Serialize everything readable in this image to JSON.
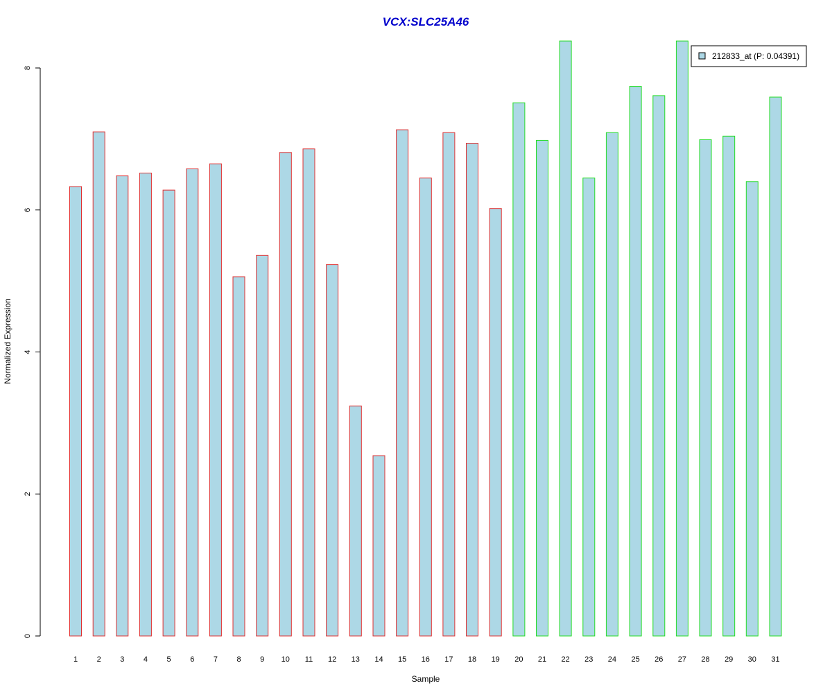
{
  "chart_data": {
    "type": "bar",
    "title": "VCX:SLC25A46",
    "xlabel": "Sample",
    "ylabel": "Normalized Expression",
    "categories": [
      "1",
      "2",
      "3",
      "4",
      "5",
      "6",
      "7",
      "8",
      "9",
      "10",
      "11",
      "12",
      "13",
      "14",
      "15",
      "16",
      "17",
      "18",
      "19",
      "20",
      "21",
      "22",
      "23",
      "24",
      "25",
      "26",
      "27",
      "28",
      "29",
      "30",
      "31"
    ],
    "series": [
      {
        "name": "212833_at (P: 0.04391)",
        "values": [
          6.33,
          7.1,
          6.48,
          6.52,
          6.28,
          6.58,
          6.65,
          5.06,
          5.36,
          6.81,
          6.86,
          5.23,
          3.24,
          2.54,
          7.13,
          6.45,
          7.09,
          6.94,
          6.02,
          7.51,
          6.98,
          8.38,
          6.45,
          7.09,
          7.74,
          7.61,
          8.38,
          6.99,
          7.04,
          6.4,
          7.59
        ]
      }
    ],
    "groups": [
      {
        "samples": "1-19",
        "edge_color": "#e03030"
      },
      {
        "samples": "20-31",
        "edge_color": "#22dd22"
      }
    ],
    "group_of_bar": [
      0,
      0,
      0,
      0,
      0,
      0,
      0,
      0,
      0,
      0,
      0,
      0,
      0,
      0,
      0,
      0,
      0,
      0,
      0,
      1,
      1,
      1,
      1,
      1,
      1,
      1,
      1,
      1,
      1,
      1,
      1
    ],
    "ylim": [
      0,
      8.38
    ],
    "yticks": [
      0,
      2,
      4,
      6,
      8
    ],
    "grid": false,
    "legend_position": "top-right",
    "bar_fill": "#add8e6",
    "title_color": "#0000cc"
  }
}
